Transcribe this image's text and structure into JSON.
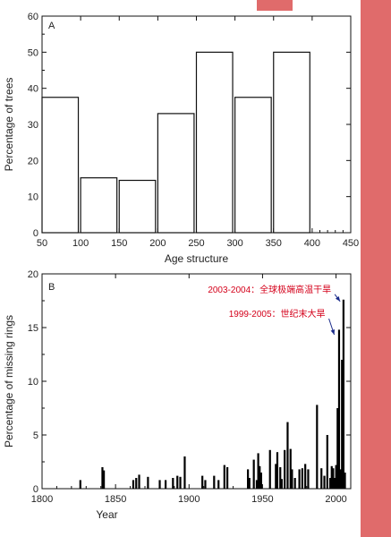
{
  "colors": {
    "accent": "#e06b6b",
    "annotation": "#d4001a",
    "bars": "#000000"
  },
  "chart_data": [
    {
      "panel": "A",
      "type": "bar",
      "ylabel": "Percentage of trees",
      "xlabel": "Age structure",
      "xlim": [
        50,
        450
      ],
      "ylim": [
        0,
        60
      ],
      "xticks": [
        50,
        100,
        150,
        200,
        250,
        300,
        350,
        400,
        450
      ],
      "yticks": [
        0,
        10,
        20,
        30,
        40,
        50,
        60
      ],
      "bars": [
        {
          "start": 50,
          "end": 97,
          "value": 37.5
        },
        {
          "start": 100,
          "end": 147,
          "value": 15.2
        },
        {
          "start": 150,
          "end": 197,
          "value": 14.5
        },
        {
          "start": 200,
          "end": 247,
          "value": 33.0
        },
        {
          "start": 250,
          "end": 297,
          "value": 50.0
        },
        {
          "start": 300,
          "end": 347,
          "value": 37.5
        },
        {
          "start": 350,
          "end": 397,
          "value": 50.0
        }
      ]
    },
    {
      "panel": "B",
      "type": "bar",
      "ylabel": "Percentage of missing rings",
      "xlabel": "Year",
      "xlim": [
        1800,
        2010
      ],
      "ylim": [
        0,
        20
      ],
      "xticks": [
        1800,
        1850,
        1900,
        1950,
        2000
      ],
      "yticks": [
        0,
        5,
        10,
        15,
        20
      ],
      "annotations": [
        {
          "text": "2003-2004：全球极端高温干旱",
          "x": 2004,
          "y": 17.6
        },
        {
          "text": "1999-2005：世纪末大旱",
          "x": 2000,
          "y": 14.5
        }
      ],
      "x": [
        1826,
        1841,
        1842,
        1862,
        1864,
        1866,
        1872,
        1880,
        1884,
        1889,
        1892,
        1894,
        1897,
        1909,
        1911,
        1917,
        1920,
        1924,
        1926,
        1940,
        1941,
        1944,
        1946,
        1947,
        1948,
        1949,
        1955,
        1959,
        1960,
        1962,
        1963,
        1965,
        1967,
        1969,
        1970,
        1972,
        1975,
        1977,
        1979,
        1981,
        1987,
        1990,
        1992,
        1994,
        1996,
        1997,
        1998,
        1999,
        2000,
        2001,
        2002,
        2003,
        2004,
        2005,
        2006
      ],
      "values": [
        0.8,
        2.0,
        1.7,
        0.8,
        1.0,
        1.3,
        1.1,
        0.8,
        0.8,
        1.0,
        1.2,
        1.1,
        3.0,
        1.2,
        0.8,
        1.2,
        0.8,
        2.2,
        2.0,
        1.8,
        1.0,
        2.7,
        0.8,
        3.3,
        2.1,
        1.5,
        3.6,
        2.3,
        3.4,
        2.0,
        0.9,
        3.6,
        6.2,
        3.7,
        1.8,
        1.0,
        1.8,
        1.9,
        2.3,
        1.8,
        7.8,
        1.9,
        1.2,
        5.0,
        1.0,
        2.1,
        1.9,
        1.0,
        2.2,
        7.5,
        14.8,
        1.8,
        12.0,
        17.6,
        1.5
      ]
    }
  ]
}
